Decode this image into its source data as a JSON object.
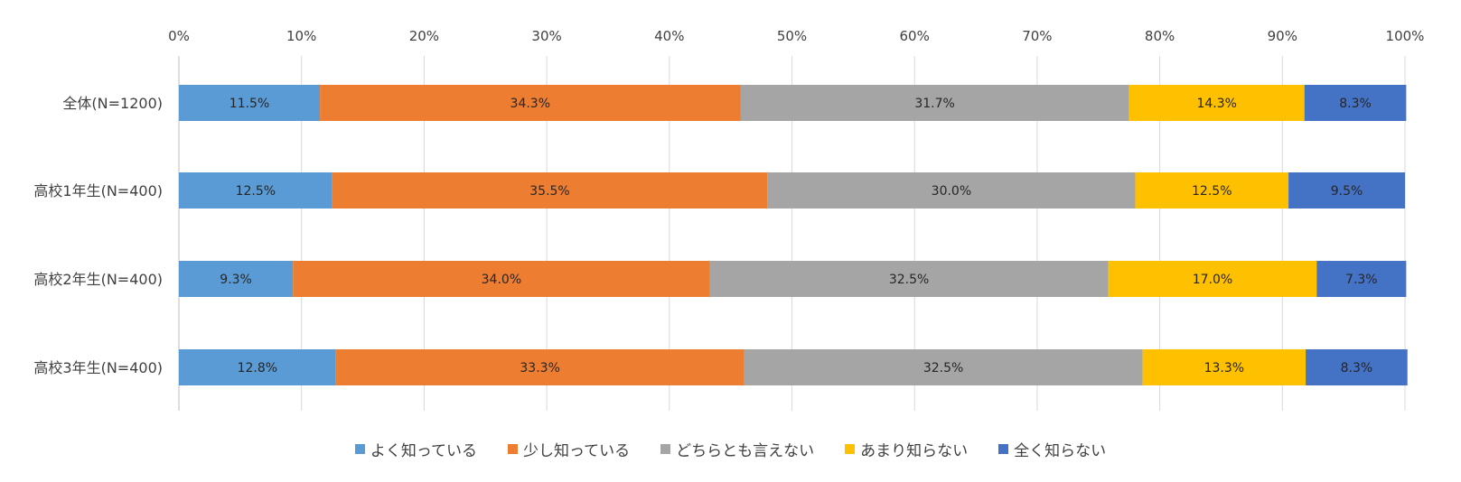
{
  "chart_data": {
    "type": "bar",
    "orientation": "horizontal",
    "stacked": "percent",
    "categories": [
      "全体(N=1200)",
      "高校1年生(N=400)",
      "高校2年生(N=400)",
      "高校3年生(N=400)"
    ],
    "x_ticks": [
      "0%",
      "10%",
      "20%",
      "30%",
      "40%",
      "50%",
      "60%",
      "70%",
      "80%",
      "90%",
      "100%"
    ],
    "xlim": [
      0,
      100
    ],
    "series": [
      {
        "name": "よく知っている",
        "color": "#5B9BD5",
        "values": [
          11.5,
          12.5,
          9.3,
          12.8
        ],
        "labels": [
          "11.5%",
          "12.5%",
          "9.3%",
          "12.8%"
        ]
      },
      {
        "name": "少し知っている",
        "color": "#ED7D31",
        "values": [
          34.3,
          35.5,
          34.0,
          33.3
        ],
        "labels": [
          "34.3%",
          "35.5%",
          "34.0%",
          "33.3%"
        ]
      },
      {
        "name": "どちらとも言えない",
        "color": "#A5A5A5",
        "values": [
          31.7,
          30.0,
          32.5,
          32.5
        ],
        "labels": [
          "31.7%",
          "30.0%",
          "32.5%",
          "32.5%"
        ]
      },
      {
        "name": "あまり知らない",
        "color": "#FFC000",
        "values": [
          14.3,
          12.5,
          17.0,
          13.3
        ],
        "labels": [
          "14.3%",
          "12.5%",
          "17.0%",
          "13.3%"
        ]
      },
      {
        "name": "全く知らない",
        "color": "#4472C4",
        "values": [
          8.3,
          9.5,
          7.3,
          8.3
        ],
        "labels": [
          "8.3%",
          "9.5%",
          "7.3%",
          "8.3%"
        ]
      }
    ],
    "grid": true,
    "legend_position": "bottom"
  }
}
